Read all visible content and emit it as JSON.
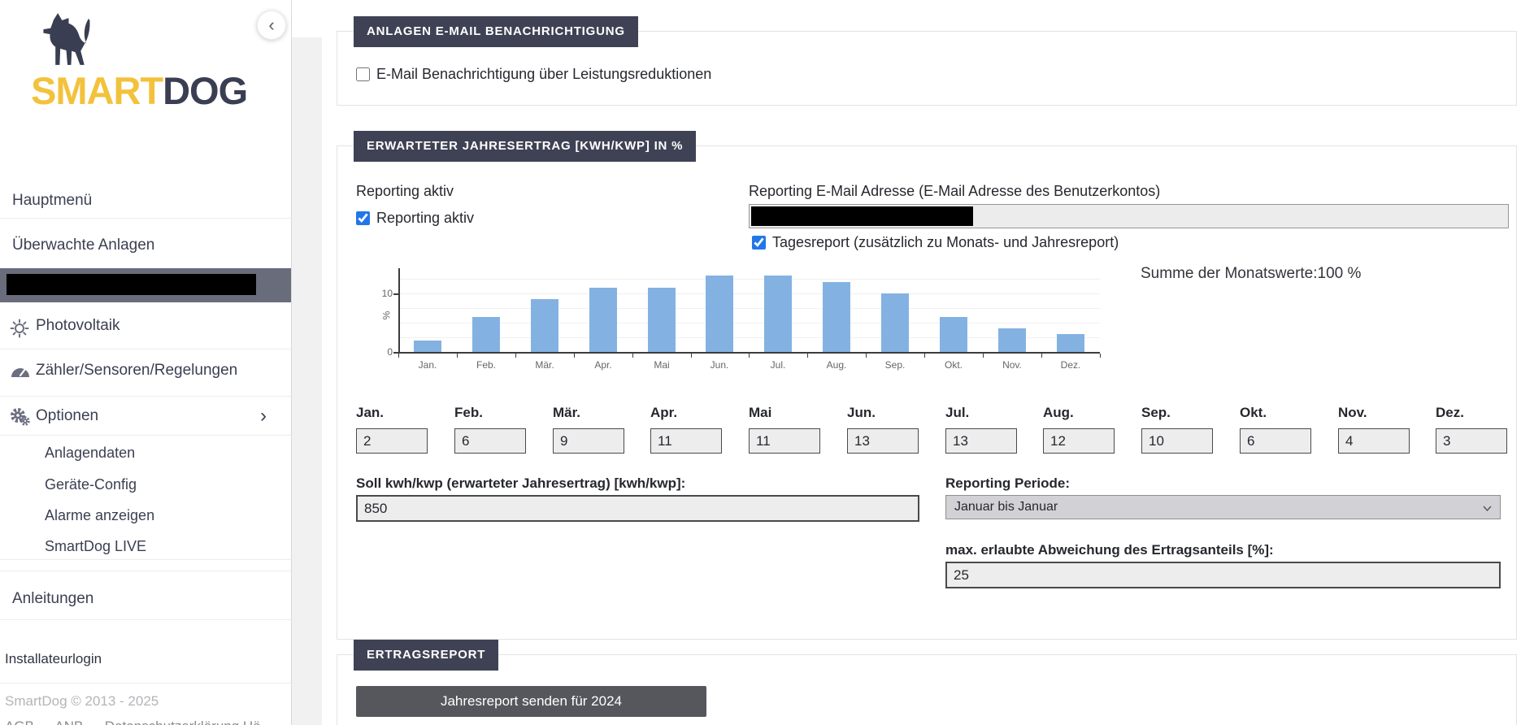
{
  "sidebar": {
    "brand_smart": "SMART",
    "brand_dog": "DOG",
    "hauptmenu": "Hauptmenü",
    "ueberwachte_anlagen": "Überwachte Anlagen",
    "photovoltaik": "Photovoltaik",
    "zaehler_sensoren": "Zähler/Sensoren/Regelungen",
    "optionen": "Optionen",
    "submenu": [
      "Anlagendaten",
      "Geräte-Config",
      "Alarme anzeigen",
      "SmartDog LIVE"
    ],
    "anleitungen": "Anleitungen",
    "installateurlogin": "Installateurlogin",
    "copyright": "SmartDog © 2013 - 2025",
    "footer_links_text": "AGB — ANB — Datenschutzerklärung Hä"
  },
  "section_email": {
    "title": "ANLAGEN E-MAIL BENACHRICHTIGUNG",
    "checkbox_label": "E-Mail Benachrichtigung über Leistungsreduktionen",
    "checkbox_checked": false
  },
  "section_ertrag": {
    "title": "ERWARTETER JAHRESERTRAG [KWH/KWP] IN %",
    "reporting_aktiv_label": "Reporting aktiv",
    "reporting_aktiv_checkbox_label": "Reporting aktiv",
    "reporting_aktiv_checked": true,
    "email_label": "Reporting E-Mail Adresse (E-Mail Adresse des Benutzerkontos)",
    "tagesreport_label": "Tagesreport (zusätzlich zu Monats- und Jahresreport)",
    "tagesreport_checked": true,
    "summe_label": "Summe der Monatswerte:100 %",
    "months": [
      {
        "label": "Jan.",
        "value": "2"
      },
      {
        "label": "Feb.",
        "value": "6"
      },
      {
        "label": "Mär.",
        "value": "9"
      },
      {
        "label": "Apr.",
        "value": "11"
      },
      {
        "label": "Mai",
        "value": "11"
      },
      {
        "label": "Jun.",
        "value": "13"
      },
      {
        "label": "Jul.",
        "value": "13"
      },
      {
        "label": "Aug.",
        "value": "12"
      },
      {
        "label": "Sep.",
        "value": "10"
      },
      {
        "label": "Okt.",
        "value": "6"
      },
      {
        "label": "Nov.",
        "value": "4"
      },
      {
        "label": "Dez.",
        "value": "3"
      }
    ],
    "soll_label": "Soll kwh/kwp (erwarteter Jahresertrag) [kwh/kwp]:",
    "soll_value": "850",
    "periode_label": "Reporting Periode:",
    "periode_value": "Januar bis Januar",
    "abweichung_label": "max. erlaubte Abweichung des Ertragsanteils [%]:",
    "abweichung_value": "25"
  },
  "section_ertragsreport": {
    "title": "ERTRAGSREPORT",
    "button_label": "Jahresreport senden für 2024"
  },
  "chart_data": {
    "type": "bar",
    "categories": [
      "Jan.",
      "Feb.",
      "Mär.",
      "Apr.",
      "Mai",
      "Jun.",
      "Jul.",
      "Aug.",
      "Sep.",
      "Okt.",
      "Nov.",
      "Dez."
    ],
    "values": [
      2,
      6,
      9,
      11,
      11,
      13,
      13,
      12,
      10,
      6,
      4,
      3
    ],
    "title": "",
    "xlabel": "",
    "ylabel": "%",
    "ylim": [
      0,
      14
    ],
    "yticks": [
      0,
      10
    ],
    "grid": true,
    "legend": false,
    "bar_color": "#83b2e2"
  },
  "colors": {
    "badge_bg": "#3f4254",
    "brand_yellow": "#f3c23c",
    "brand_navy": "#3a3e52",
    "bar_blue": "#83b2e2",
    "checkbox_blue": "#2277e8",
    "button_bg": "#55575d",
    "selected_row_bg": "#696c7b"
  }
}
